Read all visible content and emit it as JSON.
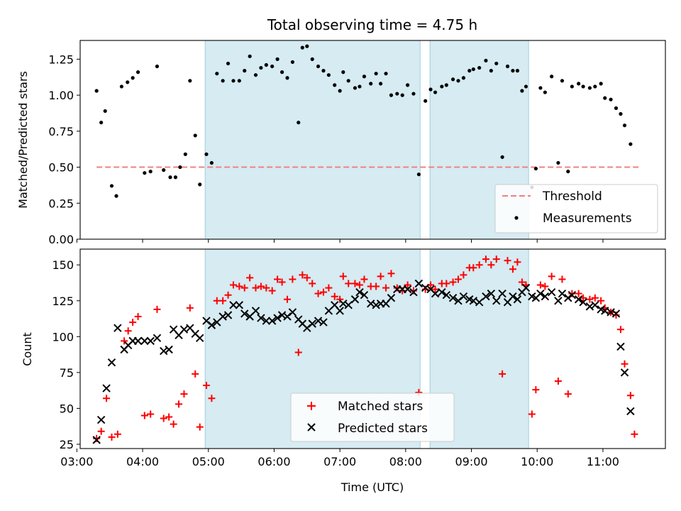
{
  "title": "Total observing time = 4.75 h",
  "chart_data": [
    {
      "type": "scatter",
      "ylabel": "Matched/Predicted stars",
      "xlabel": "",
      "x_unit": "hours (UTC)",
      "xlim": [
        3.05,
        11.95
      ],
      "ylim": [
        0.0,
        1.38
      ],
      "y_ticks": [
        0.0,
        0.25,
        0.5,
        0.75,
        1.0,
        1.25
      ],
      "y_tick_labels": [
        "0.00",
        "0.25",
        "0.50",
        "0.75",
        "1.00",
        "1.25"
      ],
      "shaded_intervals": [
        [
          4.95,
          8.22
        ],
        [
          8.37,
          9.87
        ]
      ],
      "threshold": {
        "name": "Threshold",
        "value": 0.5,
        "x": [
          3.3,
          11.55
        ],
        "color": "#f08080"
      },
      "series": [
        {
          "name": "Measurements",
          "marker": "dot",
          "color": "#000000",
          "x": [
            3.3,
            3.37,
            3.43,
            3.53,
            3.6,
            3.68,
            3.77,
            3.85,
            3.93,
            4.03,
            4.12,
            4.22,
            4.32,
            4.42,
            4.5,
            4.57,
            4.65,
            4.72,
            4.8,
            4.87,
            4.97,
            5.05,
            5.13,
            5.22,
            5.3,
            5.38,
            5.47,
            5.55,
            5.63,
            5.72,
            5.8,
            5.88,
            5.97,
            6.05,
            6.12,
            6.2,
            6.28,
            6.37,
            6.43,
            6.5,
            6.58,
            6.67,
            6.75,
            6.83,
            6.92,
            7.0,
            7.05,
            7.13,
            7.23,
            7.3,
            7.37,
            7.47,
            7.55,
            7.62,
            7.7,
            7.78,
            7.87,
            7.95,
            8.03,
            8.12,
            8.2,
            8.3,
            8.38,
            8.45,
            8.55,
            8.62,
            8.72,
            8.8,
            8.88,
            8.97,
            9.03,
            9.12,
            9.22,
            9.3,
            9.38,
            9.47,
            9.55,
            9.63,
            9.7,
            9.77,
            9.83,
            9.92,
            9.98,
            10.05,
            10.12,
            10.22,
            10.32,
            10.38,
            10.47,
            10.53,
            10.63,
            10.7,
            10.8,
            10.88,
            10.97,
            11.03,
            11.12,
            11.2,
            11.27,
            11.33,
            11.42,
            11.48,
            11.55
          ],
          "y": [
            1.03,
            0.81,
            0.89,
            0.37,
            0.3,
            1.06,
            1.09,
            1.12,
            1.16,
            0.46,
            0.47,
            1.2,
            0.48,
            0.43,
            0.43,
            0.5,
            0.59,
            1.1,
            0.72,
            0.38,
            0.59,
            0.53,
            1.15,
            1.1,
            1.22,
            1.1,
            1.1,
            1.17,
            1.27,
            1.14,
            1.19,
            1.21,
            1.2,
            1.25,
            1.16,
            1.12,
            1.23,
            0.81,
            1.33,
            1.34,
            1.25,
            1.2,
            1.17,
            1.14,
            1.07,
            1.03,
            1.16,
            1.1,
            1.05,
            1.06,
            1.13,
            1.08,
            1.15,
            1.08,
            1.15,
            1.0,
            1.01,
            1.0,
            1.07,
            1.01,
            0.45,
            0.96,
            1.04,
            1.02,
            1.06,
            1.07,
            1.11,
            1.1,
            1.12,
            1.17,
            1.18,
            1.19,
            1.24,
            1.17,
            1.22,
            0.57,
            1.2,
            1.17,
            1.17,
            1.03,
            1.06,
            0.36,
            0.49,
            1.05,
            1.02,
            1.13,
            0.53,
            1.1,
            0.47,
            1.06,
            1.08,
            1.06,
            1.05,
            1.06,
            1.08,
            0.98,
            0.97,
            0.91,
            0.87,
            0.79,
            0.66,
            null,
            null
          ]
        }
      ],
      "legend": {
        "position": "lower-right",
        "entries": [
          "Threshold",
          "Measurements"
        ]
      }
    },
    {
      "type": "scatter",
      "ylabel": "Count",
      "xlabel": "Time (UTC)",
      "x_unit": "hours (UTC)",
      "xlim": [
        3.05,
        11.95
      ],
      "ylim": [
        22,
        161
      ],
      "y_ticks": [
        25,
        50,
        75,
        100,
        125,
        150
      ],
      "y_tick_labels": [
        "25",
        "50",
        "75",
        "100",
        "125",
        "150"
      ],
      "x_ticks": [
        3,
        4,
        5,
        6,
        7,
        8,
        9,
        10,
        11
      ],
      "x_tick_labels": [
        "03:00",
        "04:00",
        "05:00",
        "06:00",
        "07:00",
        "08:00",
        "09:00",
        "10:00",
        "11:00"
      ],
      "shaded_intervals": [
        [
          4.95,
          8.22
        ],
        [
          8.37,
          9.87
        ]
      ],
      "series": [
        {
          "name": "Matched stars",
          "marker": "plus",
          "color": "#ff0000",
          "x": [
            3.3,
            3.37,
            3.45,
            3.53,
            3.62,
            3.72,
            3.78,
            3.85,
            3.93,
            4.03,
            4.12,
            4.22,
            4.32,
            4.4,
            4.47,
            4.55,
            4.63,
            4.72,
            4.8,
            4.87,
            4.97,
            5.05,
            5.13,
            5.22,
            5.3,
            5.38,
            5.47,
            5.55,
            5.63,
            5.72,
            5.8,
            5.88,
            5.97,
            6.05,
            6.12,
            6.2,
            6.28,
            6.37,
            6.43,
            6.5,
            6.58,
            6.67,
            6.75,
            6.83,
            6.92,
            7.0,
            7.05,
            7.13,
            7.23,
            7.3,
            7.37,
            7.47,
            7.55,
            7.62,
            7.7,
            7.78,
            7.87,
            7.95,
            8.03,
            8.12,
            8.2,
            8.3,
            8.38,
            8.45,
            8.55,
            8.62,
            8.72,
            8.8,
            8.88,
            8.97,
            9.03,
            9.12,
            9.22,
            9.3,
            9.38,
            9.47,
            9.55,
            9.63,
            9.7,
            9.77,
            9.83,
            9.92,
            9.98,
            10.05,
            10.12,
            10.22,
            10.32,
            10.38,
            10.47,
            10.53,
            10.63,
            10.7,
            10.8,
            10.88,
            10.97,
            11.03,
            11.12,
            11.2,
            11.27,
            11.33,
            11.42,
            11.48,
            11.55
          ],
          "y": [
            29,
            34,
            57,
            30,
            32,
            97,
            104,
            110,
            114,
            45,
            46,
            119,
            43,
            44,
            39,
            53,
            60,
            120,
            74,
            37,
            66,
            57,
            125,
            125,
            129,
            136,
            135,
            134,
            141,
            134,
            135,
            134,
            132,
            140,
            138,
            126,
            140,
            89,
            143,
            141,
            137,
            130,
            131,
            134,
            128,
            126,
            142,
            137,
            137,
            136,
            140,
            135,
            135,
            142,
            134,
            144,
            134,
            132,
            136,
            132,
            61,
            133,
            136,
            133,
            137,
            137,
            138,
            140,
            143,
            148,
            148,
            150,
            154,
            150,
            154,
            74,
            153,
            147,
            152,
            138,
            136,
            46,
            63,
            136,
            135,
            142,
            69,
            140,
            60,
            130,
            130,
            127,
            126,
            127,
            125,
            120,
            117,
            115,
            105,
            81,
            59,
            32,
            null
          ]
        },
        {
          "name": "Predicted stars",
          "marker": "x",
          "color": "#000000",
          "x": [
            3.3,
            3.37,
            3.45,
            3.53,
            3.62,
            3.72,
            3.78,
            3.85,
            3.93,
            4.03,
            4.12,
            4.22,
            4.32,
            4.4,
            4.47,
            4.55,
            4.63,
            4.72,
            4.8,
            4.87,
            4.97,
            5.05,
            5.13,
            5.22,
            5.3,
            5.38,
            5.47,
            5.55,
            5.63,
            5.72,
            5.8,
            5.88,
            5.97,
            6.05,
            6.12,
            6.2,
            6.28,
            6.37,
            6.43,
            6.5,
            6.58,
            6.67,
            6.75,
            6.83,
            6.92,
            7.0,
            7.05,
            7.13,
            7.23,
            7.3,
            7.37,
            7.47,
            7.55,
            7.62,
            7.7,
            7.78,
            7.87,
            7.95,
            8.03,
            8.12,
            8.2,
            8.3,
            8.38,
            8.45,
            8.55,
            8.62,
            8.72,
            8.8,
            8.88,
            8.97,
            9.03,
            9.12,
            9.22,
            9.3,
            9.38,
            9.47,
            9.55,
            9.63,
            9.7,
            9.77,
            9.83,
            9.92,
            9.98,
            10.05,
            10.12,
            10.22,
            10.32,
            10.38,
            10.47,
            10.53,
            10.63,
            10.7,
            10.8,
            10.88,
            10.97,
            11.03,
            11.12,
            11.2,
            11.27,
            11.33,
            11.42,
            11.48,
            11.55
          ],
          "y": [
            28,
            42,
            64,
            82,
            106,
            91,
            94,
            97,
            97,
            97,
            97,
            99,
            90,
            91,
            105,
            101,
            105,
            106,
            102,
            99,
            111,
            108,
            110,
            114,
            115,
            122,
            122,
            116,
            114,
            118,
            113,
            111,
            111,
            113,
            115,
            114,
            117,
            112,
            109,
            106,
            109,
            111,
            110,
            118,
            122,
            118,
            123,
            122,
            126,
            131,
            129,
            123,
            122,
            123,
            123,
            127,
            133,
            133,
            133,
            131,
            137,
            134,
            133,
            130,
            131,
            129,
            127,
            125,
            128,
            126,
            125,
            124,
            128,
            130,
            125,
            130,
            124,
            128,
            126,
            131,
            134,
            128,
            127,
            130,
            128,
            131,
            125,
            130,
            127,
            129,
            126,
            124,
            121,
            122,
            119,
            118,
            117,
            116,
            93,
            75,
            48,
            null,
            null
          ]
        }
      ],
      "legend": {
        "position": "lower-center",
        "entries": [
          "Matched stars",
          "Predicted stars"
        ]
      }
    }
  ]
}
